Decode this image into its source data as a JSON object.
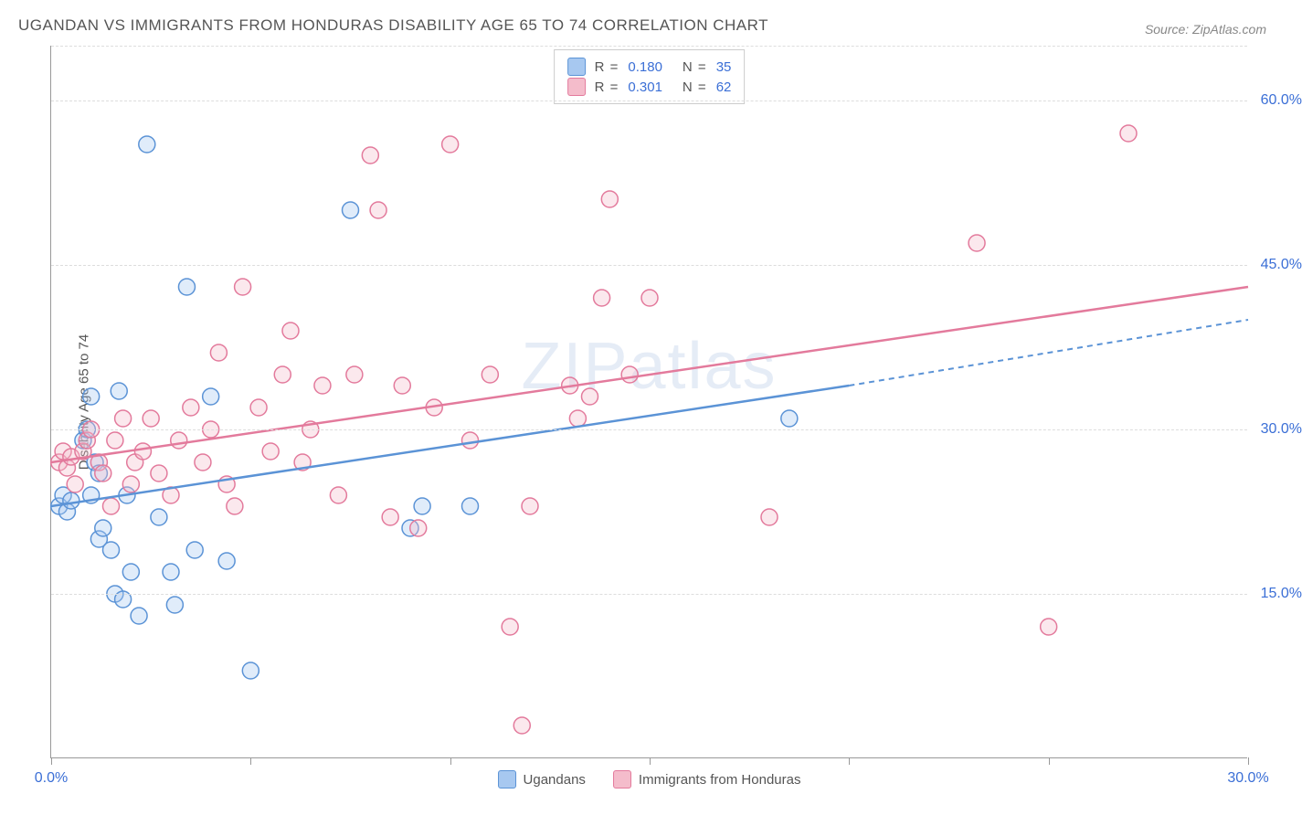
{
  "title": "UGANDAN VS IMMIGRANTS FROM HONDURAS DISABILITY AGE 65 TO 74 CORRELATION CHART",
  "source_label": "Source:",
  "source_value": "ZipAtlas.com",
  "watermark": "ZIPatlas",
  "y_axis_label": "Disability Age 65 to 74",
  "chart": {
    "type": "scatter",
    "background_color": "#ffffff",
    "grid_color": "#dddddd",
    "axis_color": "#999999",
    "tick_label_color": "#3b6fd6",
    "tick_fontsize": 16,
    "title_fontsize": 17,
    "title_color": "#555555",
    "xlim": [
      0,
      30
    ],
    "ylim": [
      0,
      65
    ],
    "x_ticks": [
      0,
      5,
      10,
      15,
      20,
      25,
      30
    ],
    "x_tick_labels": {
      "0": "0.0%",
      "30": "30.0%"
    },
    "y_ticks": [
      15,
      30,
      45,
      60
    ],
    "y_tick_labels": {
      "15": "15.0%",
      "30": "30.0%",
      "45": "45.0%",
      "60": "60.0%"
    },
    "marker_radius": 9,
    "marker_fill_opacity": 0.35,
    "marker_stroke_width": 1.5,
    "series": [
      {
        "name": "Ugandans",
        "color_fill": "#a7c8f0",
        "color_stroke": "#5b93d6",
        "r_value": "0.180",
        "n_value": "35",
        "trend_line": {
          "x1": 0,
          "y1": 23,
          "x2": 20,
          "y2": 34,
          "dash_x2": 30,
          "dash_y2": 40,
          "width": 2.5
        },
        "points": [
          [
            0.2,
            23
          ],
          [
            0.3,
            24
          ],
          [
            0.4,
            22.5
          ],
          [
            0.5,
            23.5
          ],
          [
            0.8,
            29
          ],
          [
            0.9,
            30
          ],
          [
            1.0,
            24
          ],
          [
            1.0,
            33
          ],
          [
            1.1,
            27
          ],
          [
            1.2,
            20
          ],
          [
            1.2,
            26
          ],
          [
            1.3,
            21
          ],
          [
            1.5,
            19
          ],
          [
            1.6,
            15
          ],
          [
            1.7,
            33.5
          ],
          [
            1.8,
            14.5
          ],
          [
            1.9,
            24
          ],
          [
            2.0,
            17
          ],
          [
            2.2,
            13
          ],
          [
            2.4,
            56
          ],
          [
            2.7,
            22
          ],
          [
            3.0,
            17
          ],
          [
            3.1,
            14
          ],
          [
            3.4,
            43
          ],
          [
            3.6,
            19
          ],
          [
            4.0,
            33
          ],
          [
            4.4,
            18
          ],
          [
            5.0,
            8
          ],
          [
            7.5,
            50
          ],
          [
            9.0,
            21
          ],
          [
            9.3,
            23
          ],
          [
            10.5,
            23
          ],
          [
            18.5,
            31
          ]
        ]
      },
      {
        "name": "Immigrants from Honduras",
        "color_fill": "#f4bccb",
        "color_stroke": "#e37a9c",
        "r_value": "0.301",
        "n_value": "62",
        "trend_line": {
          "x1": 0,
          "y1": 27,
          "x2": 30,
          "y2": 43,
          "width": 2.5
        },
        "points": [
          [
            0.2,
            27
          ],
          [
            0.3,
            28
          ],
          [
            0.4,
            26.5
          ],
          [
            0.5,
            27.5
          ],
          [
            0.6,
            25
          ],
          [
            0.8,
            28
          ],
          [
            0.9,
            29
          ],
          [
            1.0,
            30
          ],
          [
            1.2,
            27
          ],
          [
            1.3,
            26
          ],
          [
            1.5,
            23
          ],
          [
            1.6,
            29
          ],
          [
            1.8,
            31
          ],
          [
            2.0,
            25
          ],
          [
            2.1,
            27
          ],
          [
            2.3,
            28
          ],
          [
            2.5,
            31
          ],
          [
            2.7,
            26
          ],
          [
            3.0,
            24
          ],
          [
            3.2,
            29
          ],
          [
            3.5,
            32
          ],
          [
            3.8,
            27
          ],
          [
            4.0,
            30
          ],
          [
            4.2,
            37
          ],
          [
            4.4,
            25
          ],
          [
            4.6,
            23
          ],
          [
            4.8,
            43
          ],
          [
            5.2,
            32
          ],
          [
            5.5,
            28
          ],
          [
            5.8,
            35
          ],
          [
            6.0,
            39
          ],
          [
            6.3,
            27
          ],
          [
            6.5,
            30
          ],
          [
            6.8,
            34
          ],
          [
            7.2,
            24
          ],
          [
            7.6,
            35
          ],
          [
            8.0,
            55
          ],
          [
            8.2,
            50
          ],
          [
            8.5,
            22
          ],
          [
            8.8,
            34
          ],
          [
            9.2,
            21
          ],
          [
            9.6,
            32
          ],
          [
            10.0,
            56
          ],
          [
            10.5,
            29
          ],
          [
            11.0,
            35
          ],
          [
            11.5,
            12
          ],
          [
            11.8,
            3
          ],
          [
            12.0,
            23
          ],
          [
            13.0,
            34
          ],
          [
            13.2,
            31
          ],
          [
            13.5,
            33
          ],
          [
            13.8,
            42
          ],
          [
            14.0,
            51
          ],
          [
            14.5,
            35
          ],
          [
            15.0,
            42
          ],
          [
            18.0,
            22
          ],
          [
            23.2,
            47
          ],
          [
            25.0,
            12
          ],
          [
            27.0,
            57
          ]
        ]
      }
    ],
    "legend_bottom": [
      {
        "label": "Ugandans",
        "fill": "#a7c8f0",
        "stroke": "#5b93d6"
      },
      {
        "label": "Immigrants from Honduras",
        "fill": "#f4bccb",
        "stroke": "#e37a9c"
      }
    ]
  }
}
